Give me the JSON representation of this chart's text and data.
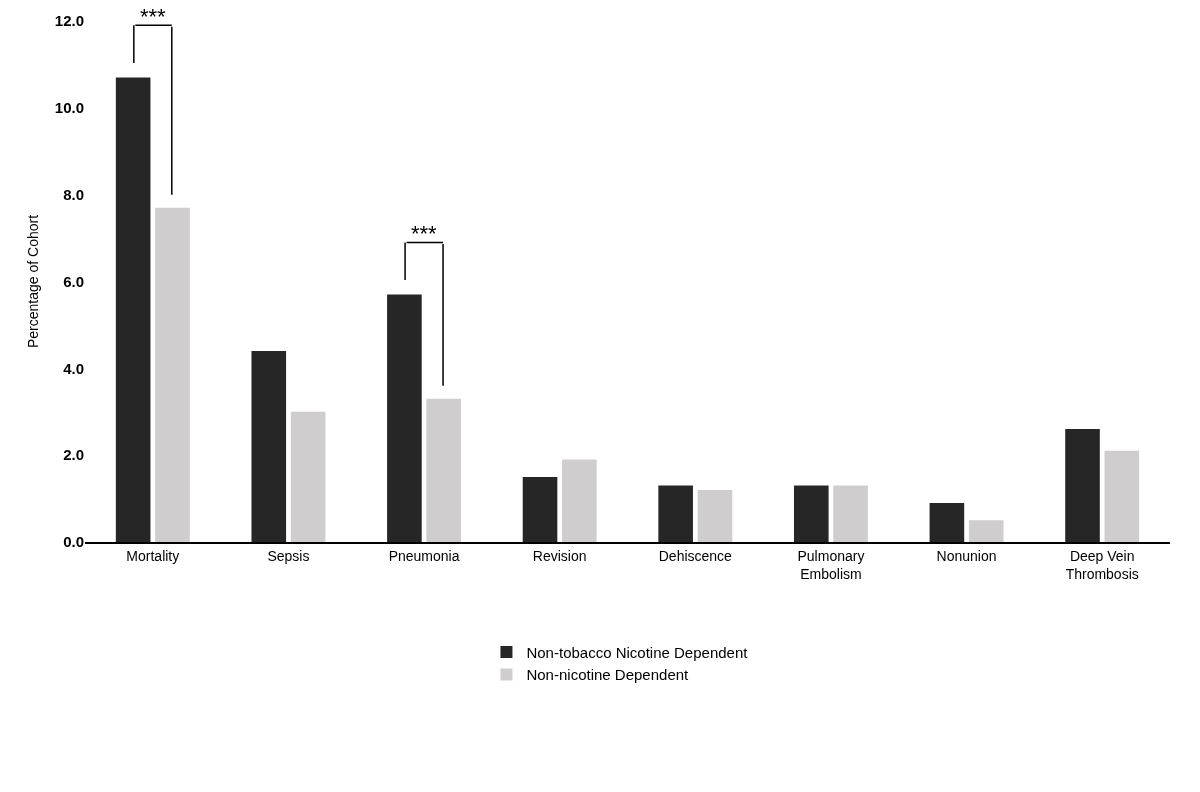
{
  "chart_data": {
    "type": "bar",
    "ylabel": "Percentage of Cohort",
    "categories": [
      "Mortality",
      "Sepsis",
      "Pneumonia",
      "Revision",
      "Dehiscence",
      "Pulmonary Embolism",
      "Nonunion",
      "Deep Vein Thrombosis"
    ],
    "series": [
      {
        "name": "Non-tobacco Nicotine Dependent",
        "color": "#262626",
        "values": [
          10.7,
          4.4,
          5.7,
          1.5,
          1.3,
          1.3,
          0.9,
          2.6
        ]
      },
      {
        "name": "Non-nicotine Dependent",
        "color": "#cfcdce",
        "values": [
          7.7,
          3.0,
          3.3,
          1.9,
          1.2,
          1.3,
          0.5,
          2.1
        ]
      }
    ],
    "ylim": [
      0,
      12
    ],
    "yticks": [
      {
        "value": 0,
        "label": "0.0"
      },
      {
        "value": 2,
        "label": "2.0"
      },
      {
        "value": 4,
        "label": "4.0"
      },
      {
        "value": 6,
        "label": "6.0"
      },
      {
        "value": 8,
        "label": "8.0"
      },
      {
        "value": 10,
        "label": "10.0"
      },
      {
        "value": 12,
        "label": "12.0"
      }
    ],
    "annotations": [
      {
        "text": "***",
        "x": "Mortality",
        "y": 10.7
      },
      {
        "text": "***",
        "x": "Pneumonia",
        "y": 5.7
      }
    ],
    "legend": "bottom"
  }
}
